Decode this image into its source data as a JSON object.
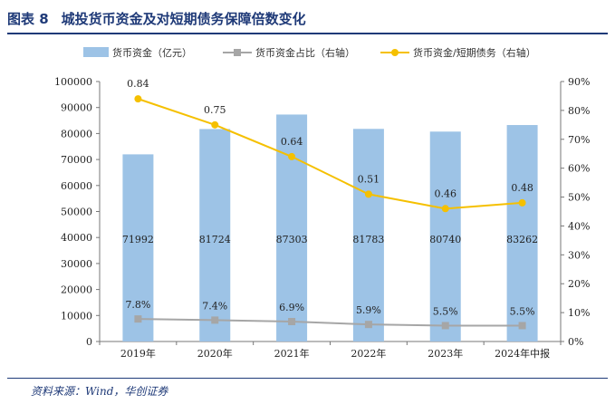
{
  "header": {
    "figure_label": "图表 8",
    "title": "城投货币资金及对短期债务保障倍数变化"
  },
  "source": "资料来源：Wind，华创证券",
  "chart_data": {
    "type": "bar",
    "title": "城投货币资金及对短期债务保障倍数变化",
    "categories": [
      "2019年",
      "2020年",
      "2021年",
      "2022年",
      "2023年",
      "2024年中报"
    ],
    "legend_position": "top",
    "grid": false,
    "y_left": {
      "ylim": [
        0,
        100000
      ],
      "ticks": [
        0,
        10000,
        20000,
        30000,
        40000,
        50000,
        60000,
        70000,
        80000,
        90000,
        100000
      ],
      "tick_labels": [
        "0",
        "10000",
        "20000",
        "30000",
        "40000",
        "50000",
        "60000",
        "70000",
        "80000",
        "90000",
        "100000"
      ]
    },
    "y_right": {
      "ylim": [
        0,
        0.9
      ],
      "ticks": [
        0,
        0.1,
        0.2,
        0.3,
        0.4,
        0.5,
        0.6,
        0.7,
        0.8,
        0.9
      ],
      "tick_labels": [
        "0%",
        "10%",
        "20%",
        "30%",
        "40%",
        "50%",
        "60%",
        "70%",
        "80%",
        "90%"
      ]
    },
    "series": [
      {
        "name": "货币资金（亿元）",
        "type": "bar",
        "axis": "left",
        "color": "#9dc3e6",
        "values": [
          71992,
          81724,
          87303,
          81783,
          80740,
          83262
        ],
        "labels": [
          "71992",
          "81724",
          "87303",
          "81783",
          "80740",
          "83262"
        ]
      },
      {
        "name": "货币资金占比（右轴）",
        "type": "line",
        "axis": "right",
        "color": "#a6a6a6",
        "marker": "square",
        "values": [
          0.078,
          0.074,
          0.069,
          0.059,
          0.055,
          0.055
        ],
        "labels": [
          "7.8%",
          "7.4%",
          "6.9%",
          "5.9%",
          "5.5%",
          "5.5%"
        ]
      },
      {
        "name": "货币资金/短期债务（右轴）",
        "type": "line",
        "axis": "right",
        "color": "#f5c000",
        "marker": "circle",
        "values": [
          0.84,
          0.75,
          0.64,
          0.51,
          0.46,
          0.48
        ],
        "labels": [
          "0.84",
          "0.75",
          "0.64",
          "0.51",
          "0.46",
          "0.48"
        ]
      }
    ]
  }
}
